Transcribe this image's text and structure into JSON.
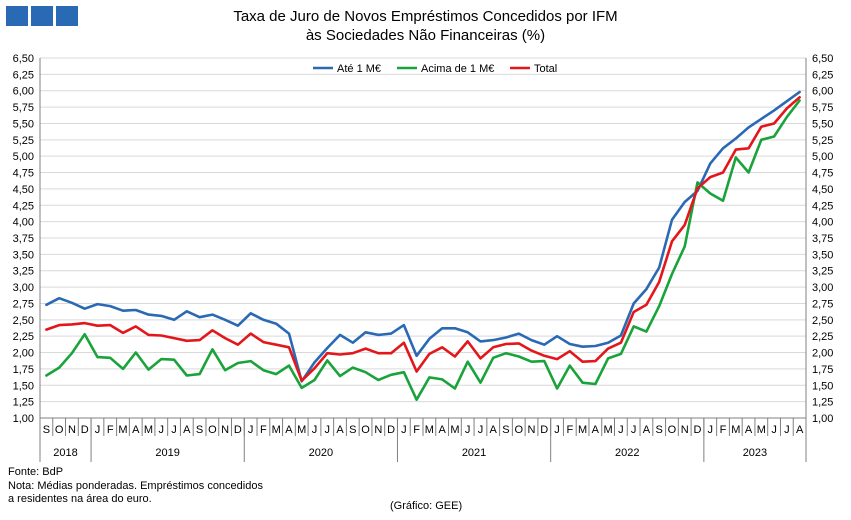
{
  "chart_data": {
    "type": "line",
    "title": "Taxa de Juro de Novos Empréstimos  Concedidos por IFM",
    "subtitle": "às Sociedades Não Financeiras (%)",
    "legend_position": "top",
    "ylim": [
      1.0,
      6.5
    ],
    "yticks": [
      "6,50",
      "6,25",
      "6,00",
      "5,75",
      "5,50",
      "5,25",
      "5,00",
      "4,75",
      "4,50",
      "4,25",
      "4,00",
      "3,75",
      "3,50",
      "3,25",
      "3,00",
      "2,75",
      "2,50",
      "2,25",
      "2,00",
      "1,75",
      "1,50",
      "1,25",
      "1,00"
    ],
    "grid": true,
    "month_labels": [
      "S",
      "O",
      "N",
      "D",
      "J",
      "F",
      "M",
      "A",
      "M",
      "J",
      "J",
      "A",
      "S",
      "O",
      "N",
      "D",
      "J",
      "F",
      "M",
      "A",
      "M",
      "J",
      "J",
      "A",
      "S",
      "O",
      "N",
      "D",
      "J",
      "F",
      "M",
      "A",
      "M",
      "J",
      "J",
      "A",
      "S",
      "O",
      "N",
      "D",
      "J",
      "F",
      "M",
      "A",
      "M",
      "J",
      "J",
      "A",
      "S",
      "O",
      "N",
      "D",
      "J",
      "F",
      "M",
      "A",
      "M",
      "J",
      "J",
      "A"
    ],
    "years": [
      {
        "label": "2018",
        "start": 0,
        "count": 4
      },
      {
        "label": "2019",
        "start": 4,
        "count": 12
      },
      {
        "label": "2020",
        "start": 16,
        "count": 12
      },
      {
        "label": "2021",
        "start": 28,
        "count": 12
      },
      {
        "label": "2022",
        "start": 40,
        "count": 12
      },
      {
        "label": "2023",
        "start": 52,
        "count": 8
      }
    ],
    "series": [
      {
        "name": "Até 1 M€",
        "color": "#2a69b4",
        "values": [
          2.73,
          2.83,
          2.76,
          2.67,
          2.74,
          2.71,
          2.64,
          2.65,
          2.58,
          2.56,
          2.5,
          2.63,
          2.54,
          2.58,
          2.5,
          2.41,
          2.6,
          2.5,
          2.44,
          2.29,
          1.56,
          1.85,
          2.07,
          2.27,
          2.15,
          2.31,
          2.27,
          2.29,
          2.42,
          1.95,
          2.21,
          2.37,
          2.37,
          2.31,
          2.17,
          2.19,
          2.23,
          2.29,
          2.19,
          2.12,
          2.25,
          2.13,
          2.09,
          2.1,
          2.15,
          2.26,
          2.75,
          2.97,
          3.3,
          4.03,
          4.3,
          4.47,
          4.89,
          5.12,
          5.27,
          5.44,
          5.57,
          5.7,
          5.84,
          5.98
        ]
      },
      {
        "name": "Acima de 1 M€",
        "color": "#19a33a",
        "values": [
          1.65,
          1.77,
          1.99,
          2.28,
          1.93,
          1.92,
          1.75,
          2.0,
          1.74,
          1.9,
          1.89,
          1.65,
          1.67,
          2.05,
          1.73,
          1.84,
          1.87,
          1.73,
          1.67,
          1.8,
          1.46,
          1.58,
          1.88,
          1.64,
          1.77,
          1.7,
          1.58,
          1.66,
          1.7,
          1.28,
          1.62,
          1.59,
          1.45,
          1.86,
          1.54,
          1.92,
          1.99,
          1.94,
          1.86,
          1.87,
          1.45,
          1.8,
          1.54,
          1.52,
          1.91,
          1.98,
          2.4,
          2.32,
          2.71,
          3.2,
          3.62,
          4.6,
          4.43,
          4.32,
          4.98,
          4.75,
          5.25,
          5.3,
          5.6,
          5.85
        ]
      },
      {
        "name": "Total",
        "color": "#e3171b",
        "values": [
          2.35,
          2.42,
          2.43,
          2.45,
          2.41,
          2.42,
          2.3,
          2.4,
          2.27,
          2.26,
          2.22,
          2.18,
          2.19,
          2.34,
          2.22,
          2.12,
          2.29,
          2.16,
          2.12,
          2.08,
          1.57,
          1.76,
          1.99,
          1.97,
          1.99,
          2.06,
          1.99,
          1.99,
          2.15,
          1.71,
          1.98,
          2.08,
          1.94,
          2.17,
          1.91,
          2.08,
          2.13,
          2.14,
          2.03,
          1.95,
          1.9,
          2.02,
          1.86,
          1.87,
          2.06,
          2.15,
          2.62,
          2.73,
          3.08,
          3.7,
          3.95,
          4.51,
          4.68,
          4.75,
          5.1,
          5.12,
          5.45,
          5.5,
          5.73,
          5.9
        ]
      }
    ]
  },
  "notes": {
    "source": "Fonte: BdP",
    "note_line1": "Nota: Médias ponderadas. Empréstimos concedidos",
    "note_line2": "a residentes na área do euro.",
    "credit": "(Gráfico: GEE)"
  }
}
